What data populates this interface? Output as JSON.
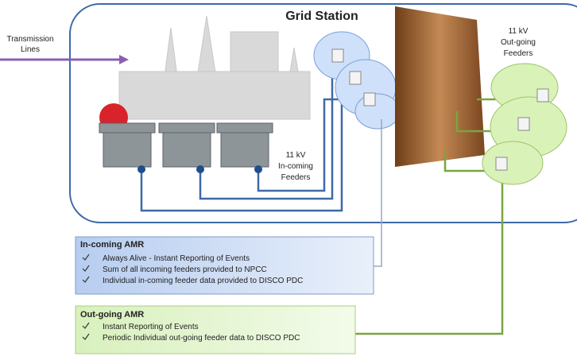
{
  "transmission_lines": [
    "Transmission",
    "Lines"
  ],
  "station": {
    "title": "Grid Station"
  },
  "incoming_feeders": [
    "11 kV",
    "In-coming",
    "Feeders"
  ],
  "outgoing_feeders": [
    "11 kV",
    "Out-going",
    "Feeders"
  ],
  "incoming_amr": {
    "title": "In-coming AMR",
    "items": [
      "Always Alive - Instant Reporting of Events",
      "Sum of all incoming feeders provided to NPCC",
      "Individual in-coming feeder data provided to DISCO PDC"
    ]
  },
  "outgoing_amr": {
    "title": "Out-going AMR",
    "items": [
      "Instant Reporting of Events",
      "Periodic Individual out-going feeder data to DISCO PDC"
    ]
  }
}
